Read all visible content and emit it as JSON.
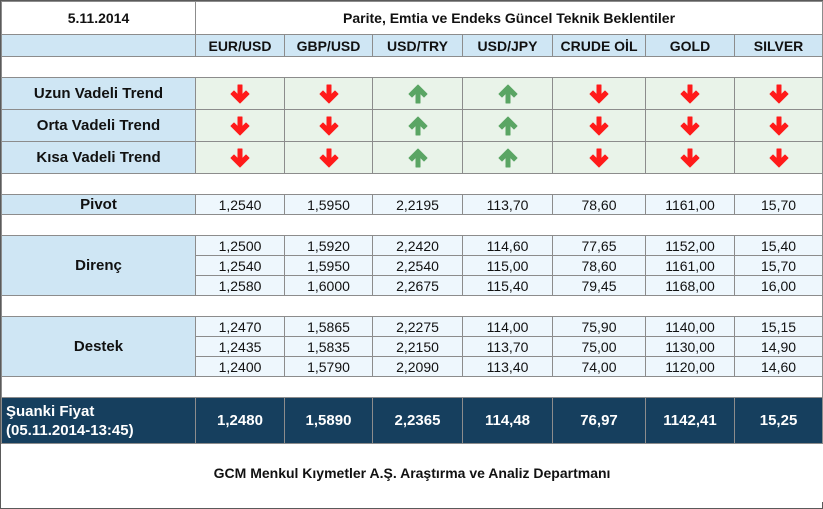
{
  "header": {
    "date": "5.11.2014",
    "title": "Parite, Emtia ve Endeks Güncel Teknik Beklentiler"
  },
  "columns": [
    "EUR/USD",
    "GBP/USD",
    "USD/TRY",
    "USD/JPY",
    "CRUDE OİL",
    "GOLD",
    "SILVER"
  ],
  "trends": [
    {
      "label": "Uzun Vadeli Trend",
      "directions": [
        "down",
        "down",
        "up",
        "up",
        "down",
        "down",
        "down"
      ]
    },
    {
      "label": "Orta Vadeli Trend",
      "directions": [
        "down",
        "down",
        "up",
        "up",
        "down",
        "down",
        "down"
      ]
    },
    {
      "label": "Kısa Vadeli Trend",
      "directions": [
        "down",
        "down",
        "up",
        "up",
        "down",
        "down",
        "down"
      ]
    }
  ],
  "pivot": {
    "label": "Pivot",
    "values": [
      "1,2540",
      "1,5950",
      "2,2195",
      "113,70",
      "78,60",
      "1161,00",
      "15,70"
    ]
  },
  "resistance": {
    "label": "Direnç",
    "rows": [
      [
        "1,2500",
        "1,5920",
        "2,2420",
        "114,60",
        "77,65",
        "1152,00",
        "15,40"
      ],
      [
        "1,2540",
        "1,5950",
        "2,2540",
        "115,00",
        "78,60",
        "1161,00",
        "15,70"
      ],
      [
        "1,2580",
        "1,6000",
        "2,2675",
        "115,40",
        "79,45",
        "1168,00",
        "16,00"
      ]
    ]
  },
  "support": {
    "label": "Destek",
    "rows": [
      [
        "1,2470",
        "1,5865",
        "2,2275",
        "114,00",
        "75,90",
        "1140,00",
        "15,15"
      ],
      [
        "1,2435",
        "1,5835",
        "2,2150",
        "113,70",
        "75,00",
        "1130,00",
        "14,90"
      ],
      [
        "1,2400",
        "1,5790",
        "2,2090",
        "113,40",
        "74,00",
        "1120,00",
        "14,60"
      ]
    ]
  },
  "current": {
    "label_line1": "Şuanki Fiyat",
    "label_line2": "(05.11.2014-13:45)",
    "values": [
      "1,2480",
      "1,5890",
      "2,2365",
      "114,48",
      "76,97",
      "1142,41",
      "15,25"
    ]
  },
  "footer": "GCM Menkul Kıymetler A.Ş. Araştırma ve Analiz Departmanı",
  "colors": {
    "down_arrow": "#ff1a1a",
    "up_arrow": "#5aa564",
    "label_bg": "#cfe6f4",
    "current_bg": "#163f5e"
  },
  "icons": {
    "down": "arrow-down-icon",
    "up": "arrow-up-icon"
  }
}
